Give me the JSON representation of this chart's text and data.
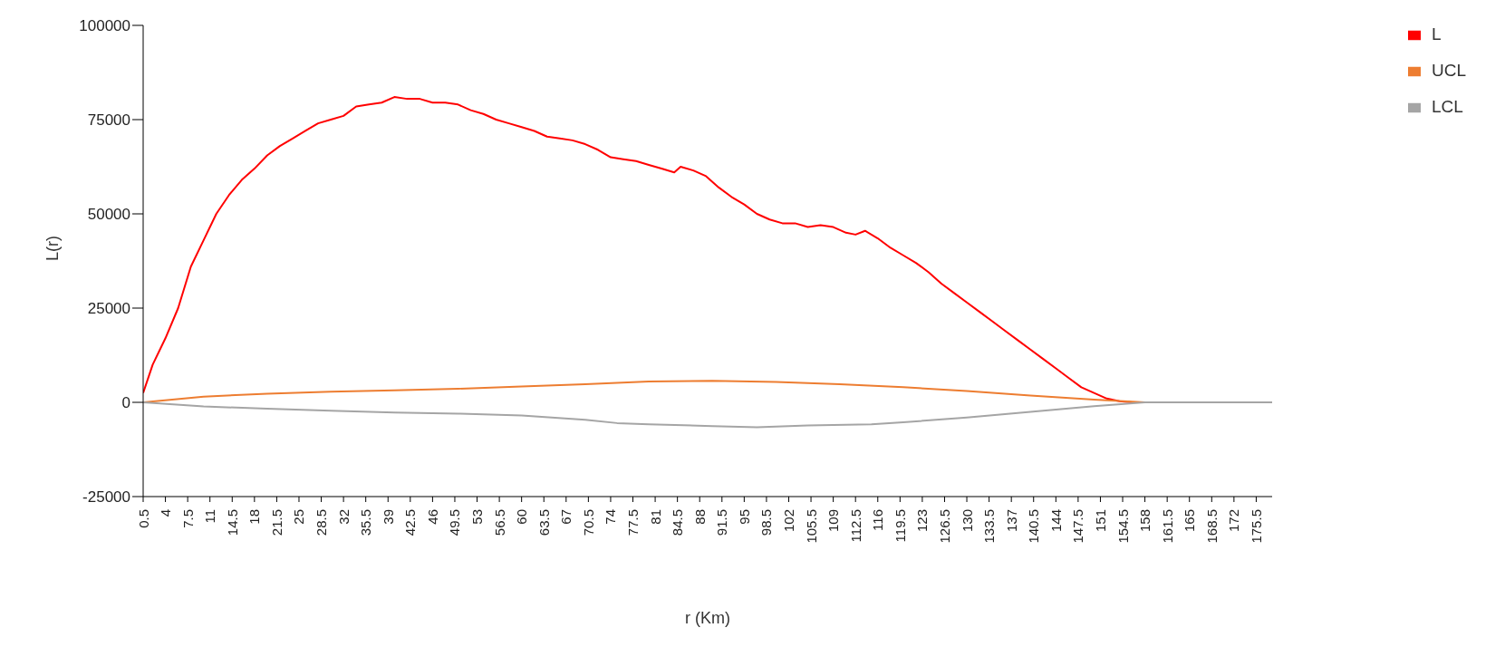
{
  "chart_data": {
    "type": "line",
    "xlabel": "r (Km)",
    "ylabel": "L(r)",
    "xlim": [
      0.5,
      178
    ],
    "xticks": [
      0.5,
      4,
      7.5,
      11,
      14.5,
      18,
      21.5,
      25,
      28.5,
      32,
      35.5,
      39,
      42.5,
      46,
      49.5,
      53,
      56.5,
      60,
      63.5,
      67,
      70.5,
      74,
      77.5,
      81,
      84.5,
      88,
      91.5,
      95,
      98.5,
      102,
      105.5,
      109,
      112.5,
      116,
      119.5,
      123,
      126.5,
      130,
      133.5,
      137,
      140.5,
      144,
      147.5,
      151,
      154.5,
      158,
      161.5,
      165,
      168.5,
      172,
      175.5
    ],
    "ylim": [
      -25000,
      100000
    ],
    "yticks": [
      -25000,
      0,
      25000,
      50000,
      75000,
      100000
    ],
    "grid": false,
    "legend": "top right",
    "marker": "none",
    "line_style": "solid",
    "series": [
      {
        "name": "L",
        "color": "#ff0000",
        "x": [
          0.5,
          2,
          4,
          6,
          8,
          10,
          12,
          14,
          16,
          18,
          20,
          22,
          24,
          26,
          28,
          30,
          32,
          34,
          36,
          38,
          40,
          42,
          44,
          46,
          48,
          50,
          52,
          54,
          56,
          58,
          60,
          62,
          64,
          66,
          68,
          70,
          72,
          74,
          76,
          78,
          80,
          82,
          84,
          85,
          87,
          89,
          91,
          93,
          95,
          97,
          99,
          101,
          103,
          105,
          107,
          109,
          111,
          112.5,
          114,
          116,
          118,
          120,
          122,
          124,
          126,
          128,
          130,
          132,
          134,
          136,
          138,
          140,
          142,
          144,
          146,
          148,
          150,
          152,
          154,
          156,
          158
        ],
        "values": [
          2500,
          10000,
          17000,
          25000,
          36000,
          43000,
          50000,
          55000,
          59000,
          62000,
          65500,
          68000,
          70000,
          72000,
          74000,
          75000,
          76000,
          78500,
          79000,
          79500,
          81000,
          80500,
          80500,
          79500,
          79500,
          79000,
          77500,
          76500,
          75000,
          74000,
          73000,
          72000,
          70500,
          70000,
          69500,
          68500,
          67000,
          65000,
          64500,
          64000,
          63000,
          62000,
          61000,
          62500,
          61500,
          60000,
          57000,
          54500,
          52500,
          50000,
          48500,
          47500,
          47500,
          46500,
          47000,
          46500,
          45000,
          44500,
          45500,
          43500,
          41000,
          39000,
          37000,
          34500,
          31500,
          29000,
          26500,
          24000,
          21500,
          19000,
          16500,
          14000,
          11500,
          9000,
          6500,
          4000,
          2500,
          1000,
          300,
          0,
          0
        ]
      },
      {
        "name": "UCL",
        "color": "#ed7d31",
        "x": [
          0.5,
          10,
          20,
          30,
          40,
          50,
          60,
          70,
          80,
          90,
          100,
          110,
          120,
          130,
          140,
          150,
          158,
          178
        ],
        "values": [
          0,
          1500,
          2300,
          2800,
          3200,
          3600,
          4200,
          4800,
          5500,
          5700,
          5400,
          4800,
          4000,
          3000,
          1800,
          700,
          0,
          0
        ]
      },
      {
        "name": "LCL",
        "color": "#a5a5a5",
        "x": [
          0.5,
          10,
          20,
          30,
          40,
          50,
          60,
          70,
          75,
          80,
          90,
          97,
          105,
          115,
          120,
          130,
          140,
          150,
          158,
          178
        ],
        "values": [
          0,
          -1100,
          -1700,
          -2200,
          -2700,
          -3000,
          -3500,
          -4600,
          -5500,
          -5800,
          -6300,
          -6600,
          -6100,
          -5800,
          -5300,
          -4000,
          -2500,
          -1000,
          0,
          0
        ]
      }
    ]
  }
}
